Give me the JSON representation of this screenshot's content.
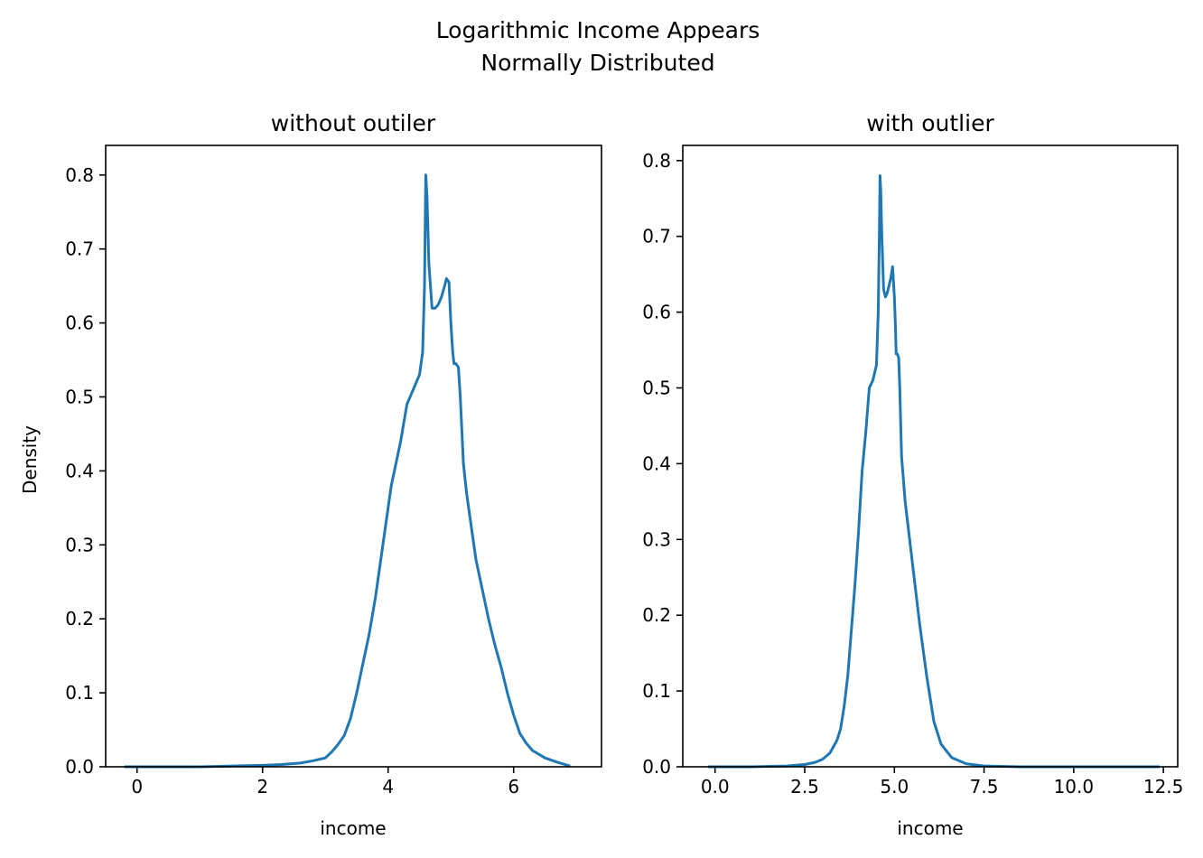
{
  "suptitle_lines": [
    "Logarithmic Income Appears",
    "Normally Distributed"
  ],
  "line_color": "#1f77b4",
  "chart_data": [
    {
      "type": "line",
      "title": "without outiler",
      "xlabel": "income",
      "ylabel": "Density",
      "xlim": [
        -0.5,
        7.4
      ],
      "ylim": [
        0,
        0.84
      ],
      "xticks": [
        0,
        2,
        4,
        6
      ],
      "xtick_labels": [
        "0",
        "2",
        "4",
        "6"
      ],
      "yticks": [
        0,
        0.1,
        0.2,
        0.3,
        0.4,
        0.5,
        0.6,
        0.7,
        0.8
      ],
      "ytick_labels": [
        "0.0",
        "0.1",
        "0.2",
        "0.3",
        "0.4",
        "0.5",
        "0.6",
        "0.7",
        "0.8"
      ],
      "grid": false,
      "series": [
        {
          "x": [
            -0.2,
            0.5,
            1.0,
            1.5,
            2.0,
            2.3,
            2.6,
            2.8,
            3.0,
            3.1,
            3.2,
            3.3,
            3.4,
            3.5,
            3.6,
            3.7,
            3.8,
            3.9,
            4.0,
            4.05,
            4.1,
            4.2,
            4.3,
            4.4,
            4.5,
            4.55,
            4.58,
            4.6,
            4.62,
            4.65,
            4.7,
            4.75,
            4.8,
            4.85,
            4.9,
            4.93,
            4.97,
            5.0,
            5.03,
            5.05,
            5.08,
            5.12,
            5.15,
            5.2,
            5.25,
            5.3,
            5.4,
            5.5,
            5.6,
            5.7,
            5.8,
            5.9,
            6.0,
            6.1,
            6.2,
            6.3,
            6.5,
            6.7,
            6.9
          ],
          "y": [
            0.0,
            0.0,
            0.0,
            0.001,
            0.002,
            0.003,
            0.005,
            0.008,
            0.012,
            0.02,
            0.03,
            0.042,
            0.065,
            0.1,
            0.14,
            0.18,
            0.23,
            0.29,
            0.35,
            0.38,
            0.4,
            0.44,
            0.49,
            0.51,
            0.53,
            0.56,
            0.65,
            0.8,
            0.77,
            0.68,
            0.62,
            0.62,
            0.625,
            0.635,
            0.65,
            0.66,
            0.655,
            0.6,
            0.56,
            0.545,
            0.545,
            0.54,
            0.5,
            0.41,
            0.37,
            0.34,
            0.28,
            0.24,
            0.2,
            0.165,
            0.135,
            0.1,
            0.07,
            0.045,
            0.032,
            0.022,
            0.012,
            0.006,
            0.001
          ]
        }
      ]
    },
    {
      "type": "line",
      "title": "with outlier",
      "xlabel": "income",
      "ylabel": "",
      "xlim": [
        -0.9,
        12.9
      ],
      "ylim": [
        0,
        0.82
      ],
      "xticks": [
        0,
        2.5,
        5.0,
        7.5,
        10.0,
        12.5
      ],
      "xtick_labels": [
        "0.0",
        "2.5",
        "5.0",
        "7.5",
        "10.0",
        "12.5"
      ],
      "yticks": [
        0,
        0.1,
        0.2,
        0.3,
        0.4,
        0.5,
        0.6,
        0.7,
        0.8
      ],
      "ytick_labels": [
        "0.0",
        "0.1",
        "0.2",
        "0.3",
        "0.4",
        "0.5",
        "0.6",
        "0.7",
        "0.8"
      ],
      "grid": false,
      "series": [
        {
          "x": [
            -0.2,
            1.0,
            2.0,
            2.5,
            2.8,
            3.0,
            3.2,
            3.4,
            3.5,
            3.6,
            3.7,
            3.8,
            3.9,
            4.0,
            4.1,
            4.2,
            4.3,
            4.4,
            4.5,
            4.55,
            4.58,
            4.6,
            4.62,
            4.65,
            4.7,
            4.75,
            4.8,
            4.85,
            4.9,
            4.95,
            5.0,
            5.03,
            5.05,
            5.08,
            5.12,
            5.15,
            5.2,
            5.3,
            5.5,
            5.7,
            5.9,
            6.1,
            6.3,
            6.6,
            7.0,
            7.5,
            8.5,
            10.0,
            12.4
          ],
          "y": [
            0.0,
            0.0,
            0.001,
            0.003,
            0.006,
            0.01,
            0.018,
            0.035,
            0.05,
            0.08,
            0.12,
            0.18,
            0.24,
            0.31,
            0.39,
            0.44,
            0.5,
            0.51,
            0.53,
            0.6,
            0.7,
            0.78,
            0.76,
            0.7,
            0.63,
            0.62,
            0.625,
            0.635,
            0.645,
            0.66,
            0.62,
            0.58,
            0.545,
            0.545,
            0.54,
            0.5,
            0.41,
            0.35,
            0.27,
            0.19,
            0.12,
            0.06,
            0.03,
            0.012,
            0.004,
            0.001,
            0.0,
            0.0,
            0.0
          ]
        }
      ]
    }
  ]
}
